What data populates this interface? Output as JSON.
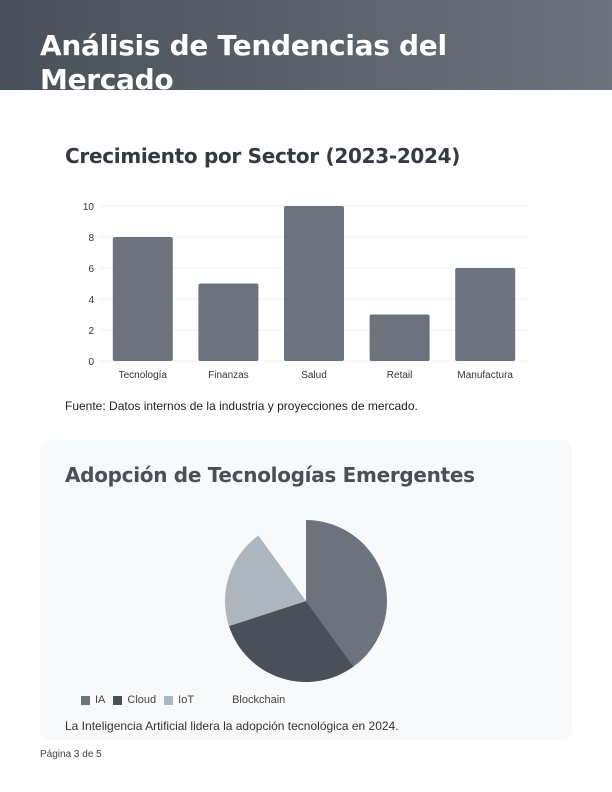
{
  "header": {
    "title": "Análisis de Tendencias del Mercado"
  },
  "section1": {
    "title": "Crecimiento por Sector (2023-2024)",
    "source": "Fuente: Datos internos de la industria y proyecciones de mercado."
  },
  "section2": {
    "title": "Adopción de Tecnologías Emergentes",
    "note": "La Inteligencia Artificial lidera la adopción tecnológica en 2024."
  },
  "footer": {
    "page": "Página 3 de 5"
  },
  "chart_data": [
    {
      "type": "bar",
      "categories": [
        "Tecnología",
        "Finanzas",
        "Salud",
        "Retail",
        "Manufactura"
      ],
      "values": [
        8,
        5,
        10,
        3,
        6
      ],
      "ylim": [
        0,
        10
      ],
      "yticks": [
        0,
        2,
        4,
        6,
        8,
        10
      ],
      "grid": true,
      "color": "#6c737c"
    },
    {
      "type": "pie",
      "labels": [
        "IA",
        "Cloud",
        "IoT",
        "Blockchain"
      ],
      "values": [
        40,
        30,
        20,
        10
      ],
      "colors": [
        "#6c737c",
        "#495057",
        "#adb5bd",
        "#f8f9fa"
      ],
      "legend": "bottom-left"
    }
  ]
}
